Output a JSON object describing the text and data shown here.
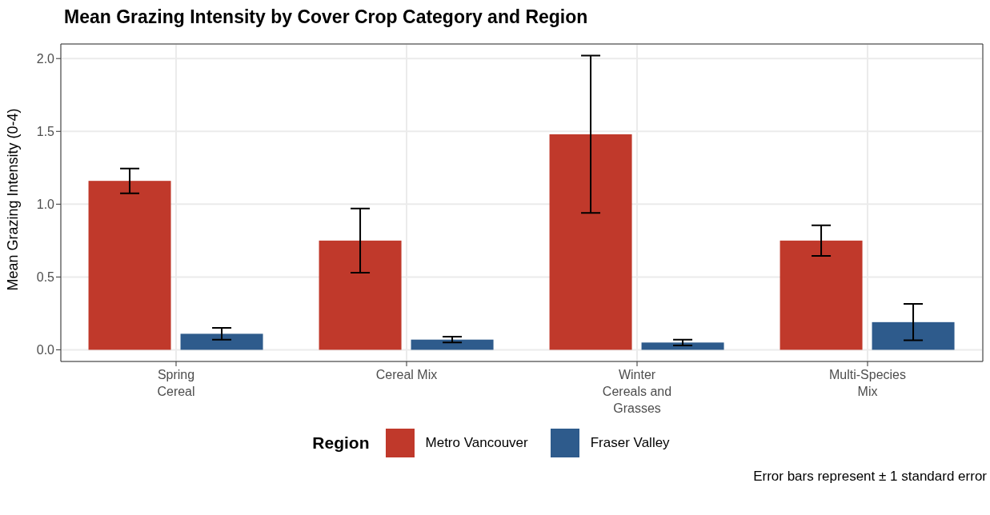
{
  "chart_data": {
    "type": "bar",
    "title": "Mean Grazing Intensity by Cover Crop Category and Region",
    "ylabel": "Mean Grazing Intensity (0-4)",
    "legend_title": "Region",
    "annotations": [
      "Error bars represent ± 1 standard error"
    ],
    "categories": [
      "Spring Cereal",
      "Cereal Mix",
      "Winter Cereals and Grasses",
      "Multi-Species Mix"
    ],
    "series": [
      {
        "name": "Metro Vancouver",
        "color": "#c0392b",
        "values": [
          1.16,
          0.75,
          1.48,
          0.75
        ],
        "errors": [
          0.085,
          0.22,
          0.54,
          0.105
        ]
      },
      {
        "name": "Fraser Valley",
        "color": "#2e5b8c",
        "values": [
          0.11,
          0.07,
          0.05,
          0.19
        ],
        "errors": [
          0.04,
          0.02,
          0.02,
          0.125
        ]
      }
    ],
    "ylim": [
      -0.08,
      2.1
    ],
    "yticks": [
      {
        "value": 0,
        "label": "0.0"
      },
      {
        "value": 0.5,
        "label": "0.5"
      },
      {
        "value": 1,
        "label": "1.0"
      },
      {
        "value": 1.5,
        "label": "1.5"
      },
      {
        "value": 2,
        "label": "2.0"
      }
    ],
    "grid": true,
    "legend": "bottom"
  }
}
